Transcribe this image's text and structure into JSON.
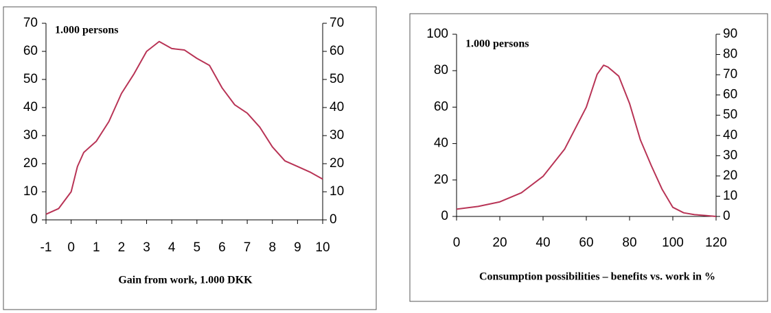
{
  "chart_data": [
    {
      "type": "line",
      "annotation": "1.000 persons",
      "x_label": "Gain from work, 1.000 DKK",
      "x": [
        -1,
        -0.5,
        0,
        0.25,
        0.5,
        0.75,
        1,
        1.5,
        2,
        2.5,
        3,
        3.5,
        4,
        4.5,
        5,
        5.5,
        6,
        6.5,
        7,
        7.5,
        8,
        8.5,
        9,
        9.5,
        10
      ],
      "series": [
        {
          "color": "#b83355",
          "values": [
            2,
            4,
            10,
            19,
            24,
            26,
            28,
            35,
            45,
            52,
            60,
            63.5,
            61,
            60.5,
            57.5,
            55,
            47,
            41,
            38,
            33,
            26,
            21,
            19,
            17,
            14.5
          ]
        }
      ],
      "xlim": [
        -1,
        10
      ],
      "xticks": [
        -1,
        0,
        1,
        2,
        3,
        4,
        5,
        6,
        7,
        8,
        9,
        10
      ],
      "ylim": [
        0,
        70
      ],
      "yticks": [
        0,
        10,
        20,
        30,
        40,
        50,
        60,
        70
      ],
      "y2lim": [
        0,
        70
      ],
      "y2ticks": [
        0,
        10,
        20,
        30,
        40,
        50,
        60,
        70
      ]
    },
    {
      "type": "line",
      "annotation": "1.000 persons",
      "x_label": "Consumption possibilities – benefits vs. work in %",
      "x": [
        0,
        10,
        20,
        30,
        40,
        50,
        60,
        65,
        68,
        70,
        75,
        80,
        85,
        90,
        95,
        100,
        105,
        110,
        115,
        120
      ],
      "series": [
        {
          "color": "#b83355",
          "values": [
            4,
            5.5,
            8,
            13,
            22,
            37,
            60,
            78,
            83,
            82,
            77,
            62,
            42,
            28,
            15,
            5,
            2,
            1,
            0.5,
            0
          ]
        }
      ],
      "xlim": [
        0,
        120
      ],
      "xticks": [
        0,
        20,
        40,
        60,
        80,
        100,
        120
      ],
      "ylim": [
        0,
        100
      ],
      "yticks": [
        0,
        20,
        40,
        60,
        80,
        100
      ],
      "y2lim": [
        0,
        90
      ],
      "y2ticks": [
        0,
        10,
        20,
        30,
        40,
        50,
        60,
        70,
        80,
        90
      ]
    }
  ]
}
